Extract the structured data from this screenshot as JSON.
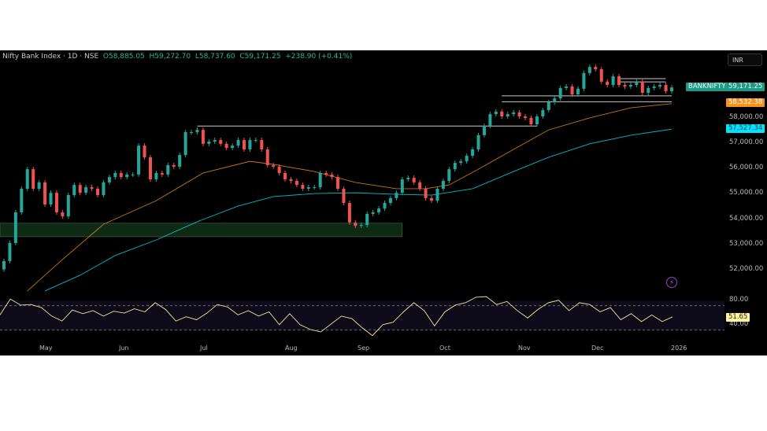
{
  "header": {
    "symbol": "Nifty Bank Index · 1D · NSE",
    "open": "O58,885.05",
    "high": "H59,272.70",
    "low": "L58,737.60",
    "close": "C59,171.25",
    "change": "+238.90 (+0.41%)"
  },
  "currency_button": "INR",
  "price_axis": {
    "ticks": [
      "58,000.00",
      "57,000.00",
      "56,000.00",
      "55,000.00",
      "54,000.00",
      "53,000.00",
      "52,000.00"
    ],
    "symbol_tag": "BANKNIFTY",
    "last_price": "59,171.25",
    "ema_fast_value": "58,532.38",
    "ema_slow_value": "57,527.34"
  },
  "rsi_axis": {
    "ticks": [
      "80.00",
      "40.00"
    ],
    "value": "51.65"
  },
  "time_axis": [
    "May",
    "Jun",
    "Jul",
    "Aug",
    "Sep",
    "Oct",
    "Nov",
    "Dec",
    "2026"
  ],
  "colors": {
    "up": "#26a69a",
    "down": "#ef5350",
    "ema_fast": "#f7931a",
    "ema_slow": "#00e5ff",
    "rsi": "#f0e6a0",
    "zone": "#0f2a14",
    "last_tag": "#1f9a84"
  },
  "icons": {
    "alert": "lightning-icon"
  },
  "chart_data": {
    "type": "candlestick",
    "yrange": [
      51000,
      60300
    ],
    "closes": [
      52330,
      53040,
      54250,
      55180,
      55950,
      55180,
      55430,
      54560,
      55020,
      54250,
      54090,
      54930,
      55330,
      55020,
      55240,
      55180,
      54930,
      55430,
      55640,
      55800,
      55640,
      55740,
      55740,
      56880,
      56420,
      55550,
      55800,
      55740,
      56110,
      56050,
      56510,
      57410,
      57410,
      57500,
      56950,
      57040,
      57100,
      56950,
      56790,
      56880,
      57100,
      56730,
      57100,
      57100,
      56730,
      56110,
      56050,
      55800,
      55550,
      55490,
      55330,
      55180,
      55240,
      55240,
      55800,
      55740,
      55640,
      55180,
      54620,
      53850,
      53720,
      53750,
      54190,
      54250,
      54400,
      54620,
      54810,
      55020,
      55550,
      55610,
      55430,
      55180,
      54810,
      54710,
      55180,
      55490,
      55950,
      56200,
      56260,
      56480,
      56730,
      57290,
      57660,
      58120,
      58220,
      58030,
      58120,
      58190,
      58030,
      57970,
      57720,
      58030,
      58280,
      58590,
      58740,
      59150,
      59210,
      58900,
      59120,
      59740,
      59980,
      59890,
      59400,
      59270,
      59610,
      59270,
      59210,
      59270,
      59400,
      58960,
      59150,
      59210,
      59270,
      59020,
      59171.25
    ],
    "ema_fast": [
      [
        4,
        51150
      ],
      [
        10,
        52390
      ],
      [
        17,
        53780
      ],
      [
        26,
        54710
      ],
      [
        34,
        55800
      ],
      [
        42,
        56260
      ],
      [
        46,
        56140
      ],
      [
        53,
        55860
      ],
      [
        60,
        55430
      ],
      [
        67,
        55180
      ],
      [
        72,
        55180
      ],
      [
        76,
        55330
      ],
      [
        81,
        55950
      ],
      [
        87,
        56730
      ],
      [
        93,
        57500
      ],
      [
        100,
        57970
      ],
      [
        107,
        58370
      ],
      [
        114,
        58532.38
      ]
    ],
    "ema_slow": [
      [
        7,
        51150
      ],
      [
        13,
        51770
      ],
      [
        19,
        52550
      ],
      [
        26,
        53160
      ],
      [
        33,
        53880
      ],
      [
        40,
        54500
      ],
      [
        46,
        54870
      ],
      [
        53,
        54990
      ],
      [
        60,
        55020
      ],
      [
        67,
        54960
      ],
      [
        73,
        54930
      ],
      [
        80,
        55180
      ],
      [
        87,
        55860
      ],
      [
        93,
        56420
      ],
      [
        100,
        56950
      ],
      [
        107,
        57290
      ],
      [
        114,
        57527.34
      ]
    ],
    "zones": [
      {
        "from_index": 0,
        "to_index": 68,
        "low": 53290,
        "high": 53820,
        "type": "demand"
      }
    ],
    "levels": [
      {
        "from_index": 33,
        "to_index": 91,
        "price": 57650
      },
      {
        "from_index": 85,
        "to_index": 114,
        "price": 58840
      },
      {
        "from_index": 85,
        "to_index": 114,
        "price": 58610
      },
      {
        "from_index": 105,
        "to_index": 113,
        "price": 59520
      },
      {
        "from_index": 105,
        "to_index": 113,
        "price": 59390
      }
    ],
    "rsi": {
      "levels": [
        70,
        30
      ],
      "values": [
        55,
        81,
        71,
        72,
        67,
        53,
        45,
        63,
        57,
        62,
        53,
        61,
        58,
        65,
        60,
        75,
        64,
        45,
        52,
        47,
        58,
        72,
        68,
        55,
        62,
        53,
        60,
        39,
        57,
        39,
        31,
        27,
        40,
        53,
        49,
        34,
        21,
        39,
        43,
        60,
        75,
        62,
        37,
        60,
        71,
        75,
        84,
        85,
        72,
        77,
        62,
        50,
        64,
        75,
        79,
        62,
        75,
        72,
        60,
        67,
        47,
        57,
        44,
        55,
        44,
        51.65
      ]
    }
  }
}
